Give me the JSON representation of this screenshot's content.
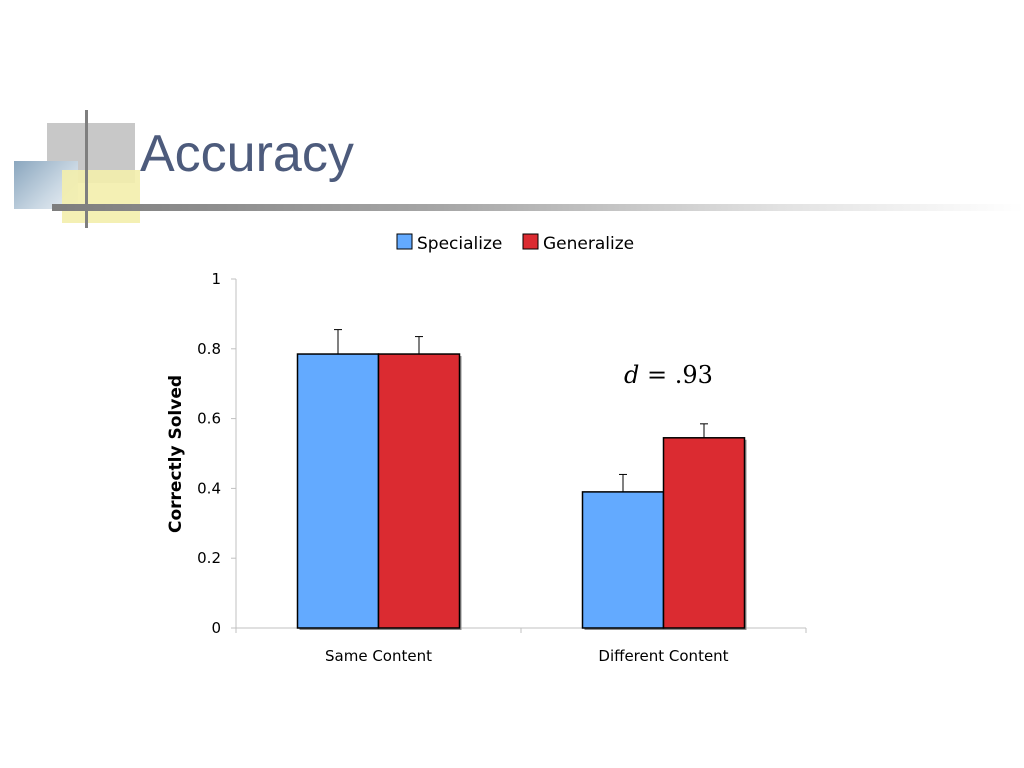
{
  "slide": {
    "title": "Accuracy"
  },
  "chart_data": {
    "type": "bar",
    "categories": [
      "Same Content",
      "Different Content"
    ],
    "series": [
      {
        "name": "Specialize",
        "color": "#63aaff",
        "values": [
          0.785,
          0.39
        ],
        "error": [
          0.07,
          0.05
        ]
      },
      {
        "name": "Generalize",
        "color": "#db2b31",
        "values": [
          0.785,
          0.545
        ],
        "error": [
          0.05,
          0.04
        ]
      }
    ],
    "ylabel": "Correctly Solved",
    "xlabel": "",
    "ylim": [
      0,
      1
    ],
    "yticks": [
      0,
      0.2,
      0.4,
      0.6,
      0.8,
      1
    ],
    "ytick_labels": [
      "0",
      "0.2",
      "0.4",
      "0.6",
      "0.8",
      "1"
    ],
    "legend_position": "top",
    "grid": false,
    "annotation": {
      "var": "d",
      "text": " = .93"
    }
  }
}
